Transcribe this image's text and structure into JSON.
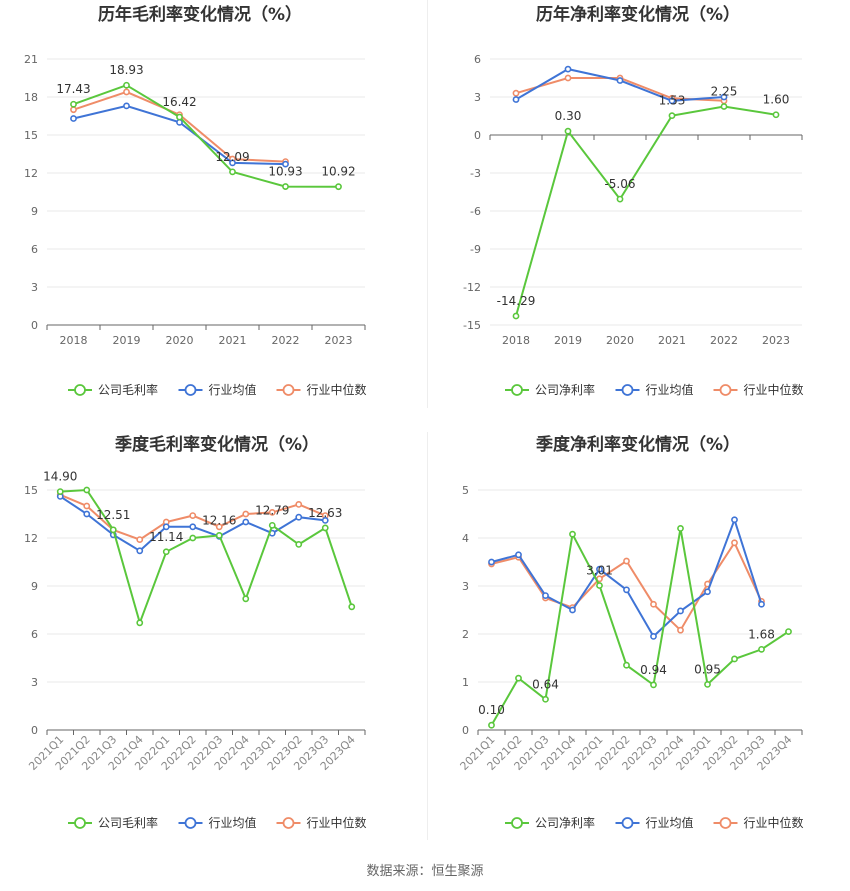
{
  "source": "数据来源：恒生聚源",
  "colors": {
    "company": "#5ac73c",
    "avg": "#3f74d6",
    "median": "#ef8c68"
  },
  "chart_data": [
    {
      "type": "line",
      "title": "历年毛利率变化情况（%）",
      "categories": [
        "2018",
        "2019",
        "2020",
        "2021",
        "2022",
        "2023"
      ],
      "ylim": [
        0,
        21
      ],
      "yticks": [
        0,
        3,
        6,
        9,
        12,
        15,
        18,
        21
      ],
      "series": [
        {
          "name": "公司毛利率",
          "key": "company",
          "values": [
            17.43,
            18.93,
            16.42,
            12.09,
            10.93,
            10.92
          ],
          "labels": [
            "17.43",
            "18.93",
            "16.42",
            "12.09",
            "10.93",
            "10.92"
          ]
        },
        {
          "name": "行业均值",
          "key": "avg",
          "values": [
            16.3,
            17.3,
            16.0,
            12.8,
            12.7,
            null
          ]
        },
        {
          "name": "行业中位数",
          "key": "median",
          "values": [
            17.0,
            18.4,
            16.6,
            13.1,
            12.9,
            null
          ]
        }
      ]
    },
    {
      "type": "line",
      "title": "历年净利率变化情况（%）",
      "categories": [
        "2018",
        "2019",
        "2020",
        "2021",
        "2022",
        "2023"
      ],
      "ylim": [
        -15,
        6
      ],
      "yticks": [
        -15,
        -12,
        -9,
        -6,
        -3,
        0,
        3,
        6
      ],
      "series": [
        {
          "name": "公司净利率",
          "key": "company",
          "values": [
            -14.29,
            0.3,
            -5.06,
            1.53,
            2.25,
            1.6
          ],
          "labels": [
            "-14.29",
            "0.30",
            "-5.06",
            "1.53",
            "2.25",
            "1.60"
          ]
        },
        {
          "name": "行业均值",
          "key": "avg",
          "values": [
            2.8,
            5.2,
            4.3,
            2.7,
            3.0,
            null
          ]
        },
        {
          "name": "行业中位数",
          "key": "median",
          "values": [
            3.3,
            4.5,
            4.5,
            2.9,
            2.7,
            null
          ]
        }
      ]
    },
    {
      "type": "line",
      "title": "季度毛利率变化情况（%）",
      "categories": [
        "2021Q1",
        "2021Q2",
        "2021Q3",
        "2021Q4",
        "2022Q1",
        "2022Q2",
        "2022Q3",
        "2022Q4",
        "2023Q1",
        "2023Q2",
        "2023Q3",
        "2023Q4"
      ],
      "ylim": [
        0,
        15
      ],
      "yticks": [
        0,
        3,
        6,
        9,
        12,
        15
      ],
      "series": [
        {
          "name": "公司毛利率",
          "key": "company",
          "values": [
            14.9,
            15.0,
            12.51,
            6.7,
            11.14,
            12.0,
            12.16,
            8.2,
            12.79,
            11.6,
            12.63,
            7.7
          ],
          "labels": [
            "14.90",
            null,
            "12.51",
            null,
            "11.14",
            null,
            "12.16",
            null,
            "12.79",
            null,
            "12.63",
            null
          ]
        },
        {
          "name": "行业均值",
          "key": "avg",
          "values": [
            14.6,
            13.5,
            12.2,
            11.2,
            12.7,
            12.7,
            12.1,
            13.0,
            12.3,
            13.3,
            13.1,
            null
          ]
        },
        {
          "name": "行业中位数",
          "key": "median",
          "values": [
            14.7,
            14.0,
            12.5,
            11.9,
            13.0,
            13.4,
            12.7,
            13.5,
            13.6,
            14.1,
            13.4,
            null
          ]
        }
      ]
    },
    {
      "type": "line",
      "title": "季度净利率变化情况（%）",
      "categories": [
        "2021Q1",
        "2021Q2",
        "2021Q3",
        "2021Q4",
        "2022Q1",
        "2022Q2",
        "2022Q3",
        "2022Q4",
        "2023Q1",
        "2023Q2",
        "2023Q3",
        "2023Q4"
      ],
      "ylim": [
        0,
        5
      ],
      "yticks": [
        0,
        1,
        2,
        3,
        4,
        5
      ],
      "series": [
        {
          "name": "公司净利率",
          "key": "company",
          "values": [
            0.1,
            1.08,
            0.64,
            4.08,
            3.01,
            1.35,
            0.94,
            4.2,
            0.95,
            1.48,
            1.68,
            2.05
          ],
          "labels": [
            "0.10",
            null,
            "0.64",
            null,
            "3.01",
            null,
            "0.94",
            null,
            "0.95",
            null,
            "1.68",
            null
          ]
        },
        {
          "name": "行业均值",
          "key": "avg",
          "values": [
            3.5,
            3.65,
            2.8,
            2.5,
            3.35,
            2.92,
            1.95,
            2.48,
            2.88,
            4.38,
            2.62,
            null
          ]
        },
        {
          "name": "行业中位数",
          "key": "median",
          "values": [
            3.46,
            3.6,
            2.75,
            2.55,
            3.15,
            3.52,
            2.62,
            2.08,
            3.04,
            3.9,
            2.68,
            null
          ]
        }
      ]
    }
  ]
}
